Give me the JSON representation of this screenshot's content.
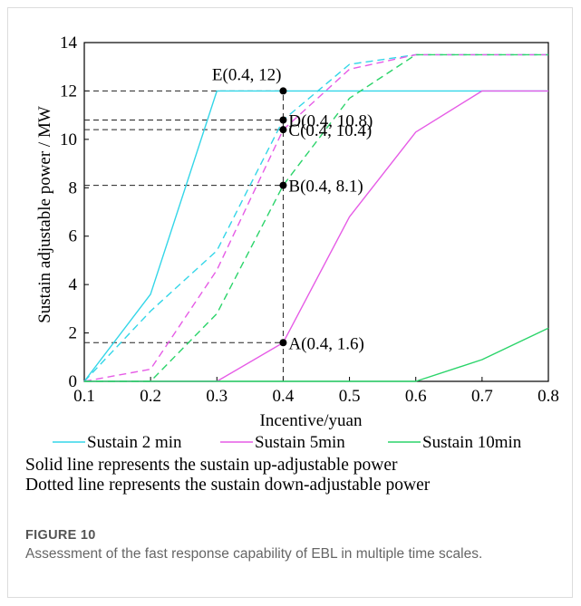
{
  "chart_data": {
    "type": "line",
    "xlabel": "Incentive/yuan",
    "ylabel": "Sustain adjustable power / MW",
    "xlim": [
      0.1,
      0.8
    ],
    "ylim": [
      0,
      14
    ],
    "xticks": [
      "0.1",
      "0.2",
      "0.3",
      "0.4",
      "0.5",
      "0.6",
      "0.7",
      "0.8"
    ],
    "yticks": [
      "0",
      "2",
      "4",
      "6",
      "8",
      "10",
      "12",
      "14"
    ],
    "grid": false,
    "legend_position": "bottom",
    "series": [
      {
        "legend": "Sustain 2 min",
        "color": "#33d6e8",
        "style": "solid",
        "x": [
          0.1,
          0.2,
          0.3,
          0.4,
          0.8
        ],
        "y": [
          0,
          3.6,
          12,
          12,
          12
        ]
      },
      {
        "legend": "Sustain 2 min",
        "color": "#33d6e8",
        "style": "dashed",
        "x": [
          0.1,
          0.2,
          0.3,
          0.4,
          0.5,
          0.6,
          0.8
        ],
        "y": [
          0,
          2.9,
          5.4,
          10.8,
          13.1,
          13.5,
          13.5
        ]
      },
      {
        "legend": "Sustain 5min",
        "color": "#e65ce6",
        "style": "solid",
        "x": [
          0.1,
          0.3,
          0.4,
          0.5,
          0.6,
          0.7,
          0.8
        ],
        "y": [
          0,
          0,
          1.6,
          6.8,
          10.3,
          12,
          12
        ]
      },
      {
        "legend": "Sustain 5min",
        "color": "#e65ce6",
        "style": "dashed",
        "x": [
          0.1,
          0.2,
          0.3,
          0.4,
          0.5,
          0.6,
          0.8
        ],
        "y": [
          0,
          0.5,
          4.6,
          10.4,
          12.9,
          13.5,
          13.5
        ]
      },
      {
        "legend": "Sustain 10min",
        "color": "#2bd46a",
        "style": "solid",
        "x": [
          0.1,
          0.6,
          0.7,
          0.8
        ],
        "y": [
          0,
          0,
          0.9,
          2.2
        ]
      },
      {
        "legend": "Sustain 10min",
        "color": "#2bd46a",
        "style": "dashed",
        "x": [
          0.1,
          0.2,
          0.3,
          0.4,
          0.5,
          0.6,
          0.8
        ],
        "y": [
          0,
          0,
          2.8,
          8.1,
          11.7,
          13.5,
          13.5
        ]
      }
    ],
    "annotations": [
      {
        "label": "E(0.4, 12)",
        "x": 0.4,
        "y": 12
      },
      {
        "label": "D(0.4, 10.8)",
        "x": 0.4,
        "y": 10.8
      },
      {
        "label": "C(0.4, 10.4)",
        "x": 0.4,
        "y": 10.4
      },
      {
        "label": "B(0.4, 8.1)",
        "x": 0.4,
        "y": 8.1
      },
      {
        "label": "A(0.4, 1.6)",
        "x": 0.4,
        "y": 1.6
      }
    ],
    "legend": [
      {
        "label": "Sustain 2 min",
        "color": "#33d6e8"
      },
      {
        "label": "Sustain 5min",
        "color": "#e65ce6"
      },
      {
        "label": "Sustain 10min",
        "color": "#2bd46a"
      }
    ]
  },
  "notes": {
    "solid": "Solid line represents the sustain up-adjustable power",
    "dotted": "Dotted line represents the sustain down-adjustable power"
  },
  "caption": {
    "label": "FIGURE 10",
    "text": "Assessment of the fast response capability of EBL in multiple time scales."
  }
}
